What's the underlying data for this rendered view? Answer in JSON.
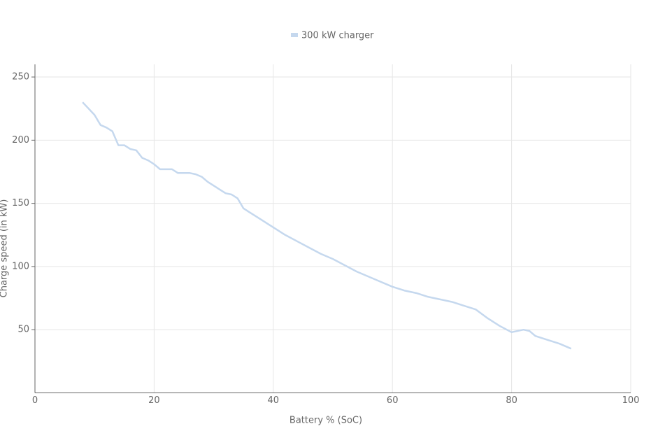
{
  "chart_data": {
    "type": "line",
    "x_label": "Battery % (SoC)",
    "y_label": "Charge speed (in kW)",
    "xlim": [
      0,
      100
    ],
    "xticks": [
      0,
      20,
      40,
      60,
      80,
      100
    ],
    "ylim": [
      0,
      260
    ],
    "yticks": [
      50,
      100,
      150,
      200,
      250
    ],
    "grid": true,
    "legend": "top",
    "x": [
      8,
      9,
      10,
      11,
      12,
      13,
      14,
      15,
      16,
      17,
      18,
      19,
      20,
      21,
      22,
      23,
      24,
      25,
      26,
      27,
      28,
      29,
      30,
      31,
      32,
      33,
      34,
      35,
      36,
      38,
      40,
      42,
      44,
      46,
      48,
      50,
      52,
      54,
      56,
      58,
      60,
      62,
      64,
      66,
      68,
      70,
      72,
      74,
      76,
      78,
      80,
      82,
      83,
      84,
      86,
      88,
      90
    ],
    "series": [
      {
        "name": "300 kW charger",
        "color": "#c5d8ee",
        "values": [
          230,
          225,
          220,
          212,
          210,
          207,
          196,
          196,
          193,
          192,
          186,
          184,
          181,
          177,
          177,
          177,
          174,
          174,
          174,
          173,
          171,
          167,
          164,
          161,
          158,
          157,
          154,
          146,
          143,
          137,
          131,
          125,
          120,
          115,
          110,
          106,
          101,
          96,
          92,
          88,
          84,
          81,
          79,
          76,
          74,
          72,
          69,
          66,
          59,
          53,
          48,
          50,
          49,
          45,
          42,
          39,
          35
        ]
      }
    ]
  }
}
